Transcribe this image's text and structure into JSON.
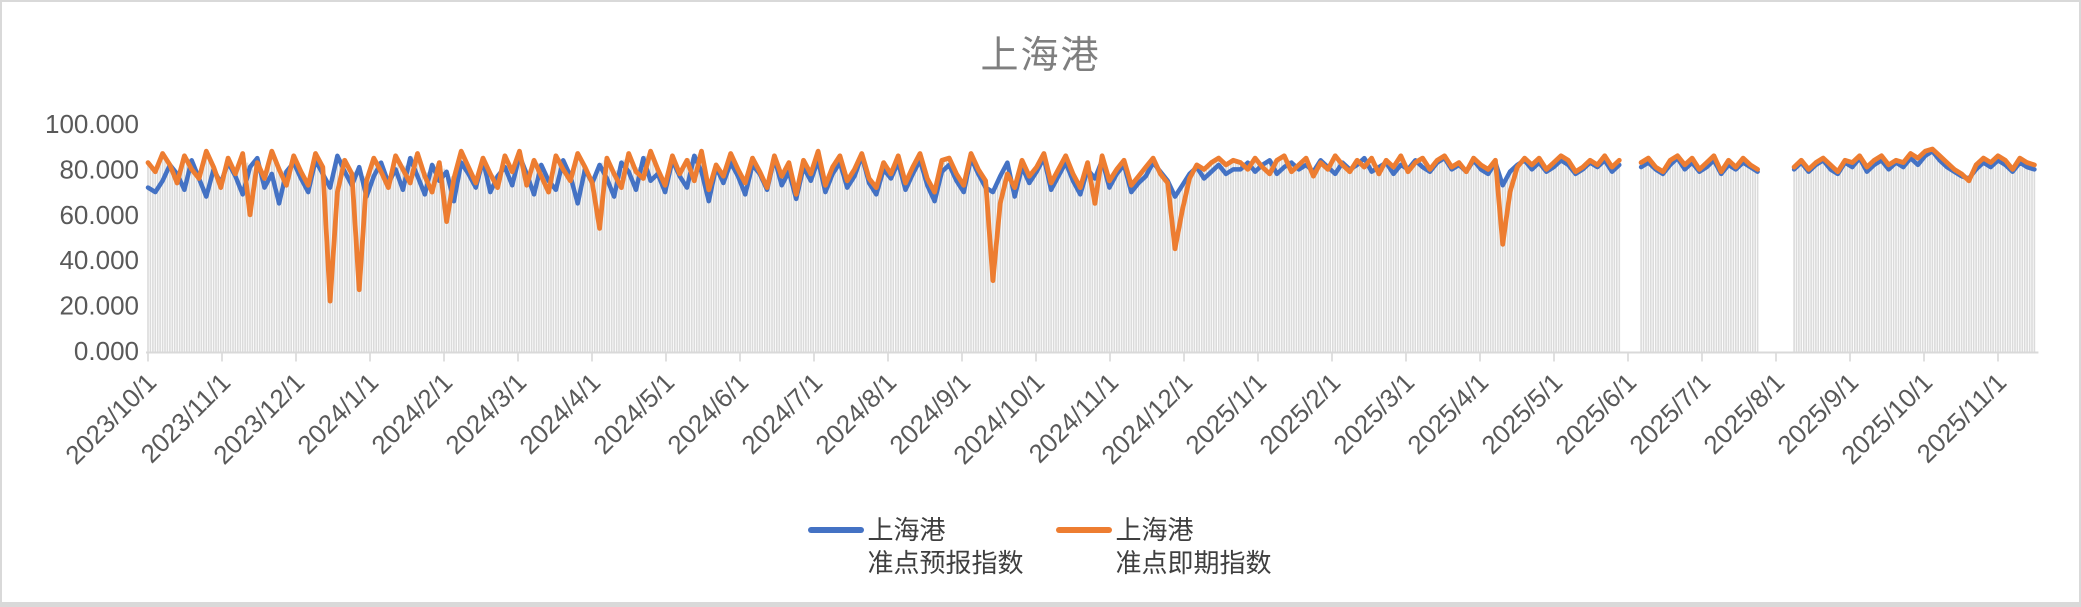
{
  "title": "上海港",
  "legend": [
    {
      "line1": "上海港",
      "line2": "准点预报指数",
      "color": "#4472C4"
    },
    {
      "line1": "上海港",
      "line2": "准点即期指数",
      "color": "#ED7D31"
    }
  ],
  "chart_data": {
    "type": "line",
    "title": "上海港",
    "xlabel": "",
    "ylabel": "",
    "ylim": [
      0,
      100
    ],
    "grid": "none",
    "legend_position": "bottom",
    "y_ticks": [
      {
        "label": "0.000",
        "value": 0
      },
      {
        "label": "20.000",
        "value": 20
      },
      {
        "label": "40.000",
        "value": 40
      },
      {
        "label": "60.000",
        "value": 60
      },
      {
        "label": "80.000",
        "value": 80
      },
      {
        "label": "100.000",
        "value": 100
      }
    ],
    "x_tick_labels": [
      "2023/10/1",
      "2023/11/1",
      "2023/12/1",
      "2024/1/1",
      "2024/2/1",
      "2024/3/1",
      "2024/4/1",
      "2024/5/1",
      "2024/6/1",
      "2024/7/1",
      "2024/8/1",
      "2024/9/1",
      "2024/10/1",
      "2024/11/1",
      "2024/12/1",
      "2025/1/1",
      "2025/2/1",
      "2025/3/1",
      "2025/4/1",
      "2025/5/1",
      "2025/6/1",
      "2025/7/1",
      "2025/8/1",
      "2025/9/1",
      "2025/10/1",
      "2025/11/1"
    ],
    "x_start_date": "2023/10/1",
    "x_end_date": "2025/11/16",
    "x_step_days": 3,
    "axis_color": "#D9D9D9",
    "tick_label_color": "#595959",
    "title_color": "#7F7F7F",
    "background_bars_color": "#DBDBDB",
    "note": "values are daily on-time indices (0-100), estimated from pixels; nulls are data gaps (2025/6/1-6/7 and 2025/7/26-8/7)",
    "series": [
      {
        "name": "上海港 准点预报指数",
        "color": "#4472C4",
        "line_width": 4.5,
        "values": [
          72,
          70,
          75,
          82,
          78,
          71,
          84,
          76,
          68,
          80,
          74,
          83,
          77,
          69,
          81,
          85,
          72,
          78,
          65,
          79,
          83,
          76,
          70,
          84,
          78,
          72,
          86,
          79,
          73,
          81,
          68,
          77,
          83,
          74,
          80,
          71,
          85,
          77,
          69,
          82,
          75,
          79,
          66,
          83,
          78,
          72,
          84,
          70,
          77,
          81,
          73,
          86,
          78,
          69,
          82,
          75,
          71,
          84,
          77,
          65,
          80,
          74,
          82,
          76,
          68,
          83,
          79,
          71,
          85,
          75,
          78,
          70,
          84,
          77,
          72,
          86,
          79,
          66,
          81,
          74,
          83,
          77,
          69,
          82,
          78,
          71,
          85,
          73,
          79,
          67,
          81,
          75,
          84,
          70,
          78,
          83,
          72,
          77,
          86,
          74,
          69,
          80,
          76,
          83,
          71,
          78,
          84,
          73,
          66,
          79,
          82,
          75,
          70,
          85,
          78,
          72,
          70,
          77,
          83,
          68,
          81,
          74,
          79,
          85,
          71,
          77,
          83,
          75,
          69,
          80,
          76,
          84,
          72,
          78,
          82,
          70,
          74,
          77,
          83,
          79,
          75,
          68,
          73,
          78,
          81,
          76,
          79,
          82,
          78,
          80,
          80,
          83,
          79,
          82,
          84,
          78,
          81,
          83,
          80,
          82,
          79,
          84,
          81,
          78,
          83,
          80,
          82,
          85,
          79,
          81,
          83,
          78,
          82,
          80,
          84,
          81,
          79,
          83,
          85,
          80,
          82,
          79,
          84,
          80,
          78,
          83,
          73,
          79,
          82,
          84,
          80,
          83,
          79,
          81,
          84,
          82,
          78,
          80,
          83,
          81,
          84,
          79,
          82,
          null,
          null,
          81,
          83,
          80,
          78,
          82,
          85,
          80,
          83,
          79,
          81,
          84,
          78,
          82,
          80,
          83,
          81,
          79,
          null,
          null,
          null,
          null,
          80,
          83,
          79,
          82,
          84,
          80,
          78,
          83,
          81,
          85,
          79,
          82,
          84,
          80,
          83,
          81,
          85,
          82,
          86,
          88,
          84,
          81,
          79,
          77,
          76,
          80,
          83,
          81,
          84,
          82,
          79,
          83,
          81,
          80
        ]
      },
      {
        "name": "上海港 准点即期指数",
        "color": "#ED7D31",
        "line_width": 4.8,
        "values": [
          83,
          79,
          87,
          82,
          74,
          86,
          80,
          76,
          88,
          81,
          72,
          85,
          78,
          87,
          60,
          83,
          76,
          88,
          80,
          73,
          86,
          79,
          73,
          87,
          81,
          22,
          70,
          84,
          78,
          27,
          75,
          85,
          79,
          72,
          86,
          80,
          74,
          87,
          77,
          70,
          83,
          57,
          76,
          88,
          81,
          74,
          85,
          78,
          72,
          86,
          79,
          88,
          73,
          84,
          77,
          70,
          86,
          80,
          75,
          87,
          81,
          74,
          54,
          85,
          78,
          72,
          87,
          79,
          76,
          88,
          80,
          73,
          86,
          78,
          84,
          75,
          88,
          71,
          82,
          77,
          87,
          80,
          74,
          85,
          79,
          72,
          86,
          77,
          83,
          69,
          84,
          78,
          88,
          73,
          81,
          86,
          75,
          80,
          87,
          76,
          72,
          83,
          78,
          86,
          74,
          81,
          87,
          76,
          70,
          84,
          85,
          78,
          73,
          87,
          80,
          75,
          31,
          65,
          78,
          72,
          84,
          77,
          81,
          87,
          74,
          80,
          86,
          78,
          72,
          83,
          65,
          86,
          75,
          80,
          84,
          73,
          77,
          81,
          85,
          78,
          74,
          45,
          62,
          76,
          82,
          80,
          83,
          85,
          82,
          84,
          83,
          80,
          85,
          81,
          78,
          84,
          86,
          79,
          82,
          85,
          77,
          83,
          80,
          86,
          82,
          79,
          84,
          81,
          85,
          78,
          84,
          81,
          86,
          79,
          83,
          85,
          80,
          84,
          86,
          81,
          83,
          79,
          85,
          82,
          80,
          84,
          47,
          70,
          81,
          85,
          82,
          85,
          80,
          83,
          86,
          84,
          79,
          81,
          84,
          82,
          86,
          81,
          84,
          null,
          null,
          83,
          85,
          81,
          79,
          84,
          86,
          82,
          85,
          80,
          83,
          86,
          79,
          84,
          81,
          85,
          82,
          80,
          null,
          null,
          null,
          null,
          81,
          84,
          80,
          83,
          85,
          82,
          79,
          84,
          83,
          86,
          81,
          84,
          86,
          82,
          84,
          83,
          87,
          85,
          88,
          89,
          86,
          83,
          80,
          78,
          75,
          82,
          85,
          83,
          86,
          84,
          80,
          85,
          83,
          82
        ]
      }
    ]
  }
}
